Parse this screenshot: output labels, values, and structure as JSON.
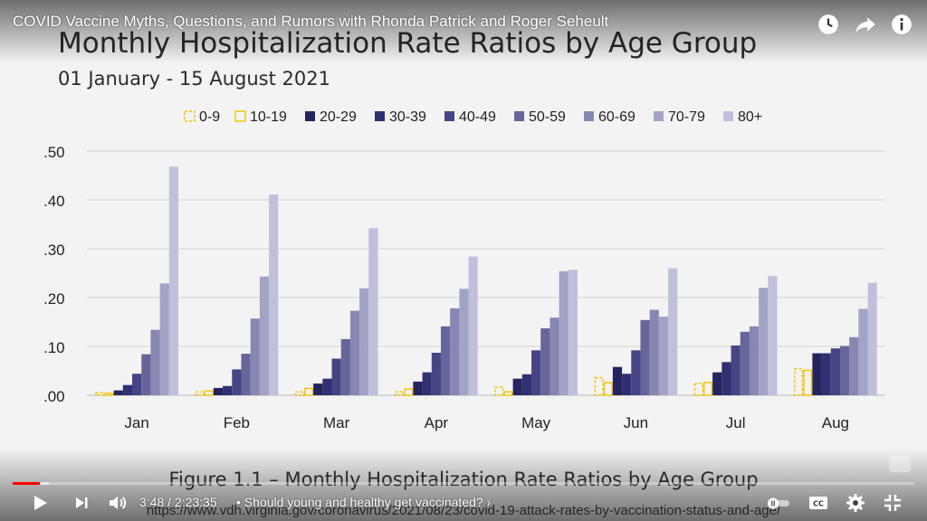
{
  "video": {
    "title": "COVID Vaccine Myths, Questions, and Rumors with Rhonda Patrick and Roger Seheult",
    "time_current": "3:48",
    "time_separator": " / ",
    "time_total": "2:23:35",
    "chapter": "• Should young and healthy get vaccinated? ›",
    "progress": 0.03
  },
  "slide": {
    "figure_caption": "Figure 1.1 – Monthly Hospitalization Rate Ratios by Age Group",
    "source_url": "https://www.vdh.virginia.gov/coronavirus/2021/08/23/covid-19-attack-rates-by-vaccination-status-and-age/"
  },
  "icons": {
    "watch_later": "clock-icon",
    "share": "share-icon",
    "info": "info-icon",
    "play": "play-icon",
    "next": "next-icon",
    "volume": "volume-icon",
    "autoplay": "autoplay-toggle-icon",
    "captions": "cc-icon",
    "settings": "gear-icon",
    "exit_fullscreen": "exit-fullscreen-icon"
  },
  "colors": {
    "progress_played": "#ff0000",
    "yellow_series": "#f2c200"
  },
  "chart_data": {
    "type": "bar",
    "title": "Monthly Hospitalization Rate Ratios by Age Group",
    "subtitle": "01 January - 15 August 2021",
    "categories": [
      "Jan",
      "Feb",
      "Mar",
      "Apr",
      "May",
      "Jun",
      "Jul",
      "Aug"
    ],
    "ylim": [
      0,
      0.5
    ],
    "y_ticks": [
      ".00",
      ".10",
      ".20",
      ".30",
      ".40",
      ".50"
    ],
    "grid": true,
    "legend_position": "top",
    "series": [
      {
        "name": "0-9",
        "color": "#f2c200",
        "style": "dashed-outline",
        "values": [
          0.005,
          0.007,
          0.007,
          0.007,
          0.017,
          0.036,
          0.024,
          0.054
        ]
      },
      {
        "name": "10-19",
        "color": "#f2c200",
        "style": "outline",
        "values": [
          0.004,
          0.009,
          0.014,
          0.013,
          0.007,
          0.026,
          0.026,
          0.051
        ]
      },
      {
        "name": "20-29",
        "color": "#24245e",
        "values": [
          0.01,
          0.015,
          0.024,
          0.028,
          0.034,
          0.058,
          0.047,
          0.086
        ]
      },
      {
        "name": "30-39",
        "color": "#303072",
        "values": [
          0.021,
          0.019,
          0.034,
          0.047,
          0.043,
          0.044,
          0.068,
          0.086
        ]
      },
      {
        "name": "40-49",
        "color": "#454585",
        "values": [
          0.044,
          0.053,
          0.075,
          0.087,
          0.092,
          0.092,
          0.102,
          0.096
        ]
      },
      {
        "name": "50-59",
        "color": "#66669a",
        "values": [
          0.084,
          0.085,
          0.115,
          0.141,
          0.137,
          0.154,
          0.13,
          0.101
        ]
      },
      {
        "name": "60-69",
        "color": "#8787b4",
        "values": [
          0.134,
          0.157,
          0.173,
          0.178,
          0.159,
          0.175,
          0.141,
          0.119
        ]
      },
      {
        "name": "70-79",
        "color": "#a3a3c6",
        "values": [
          0.229,
          0.243,
          0.219,
          0.218,
          0.254,
          0.161,
          0.22,
          0.177
        ]
      },
      {
        "name": "80+",
        "color": "#c0c0dc",
        "values": [
          0.468,
          0.411,
          0.342,
          0.284,
          0.257,
          0.26,
          0.244,
          0.23
        ]
      }
    ]
  }
}
